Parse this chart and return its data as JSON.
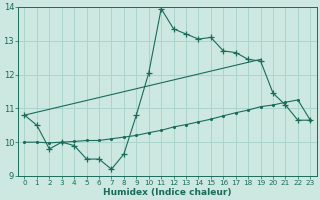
{
  "xlabel": "Humidex (Indice chaleur)",
  "bg_color": "#cce8e0",
  "line_color": "#1a6b5a",
  "grid_color": "#aad4cc",
  "xlim": [
    -0.5,
    23.5
  ],
  "ylim": [
    9.0,
    14.0
  ],
  "yticks": [
    9,
    10,
    11,
    12,
    13,
    14
  ],
  "xticks": [
    0,
    1,
    2,
    3,
    4,
    5,
    6,
    7,
    8,
    9,
    10,
    11,
    12,
    13,
    14,
    15,
    16,
    17,
    18,
    19,
    20,
    21,
    22,
    23
  ],
  "line1_x": [
    0,
    1,
    2,
    3,
    4,
    5,
    6,
    7,
    8,
    9,
    10,
    11,
    12,
    13,
    14,
    15,
    16,
    17,
    18,
    19,
    20,
    21,
    22,
    23
  ],
  "line1_y": [
    10.8,
    10.5,
    9.8,
    10.0,
    9.9,
    9.5,
    9.5,
    9.2,
    9.65,
    10.8,
    12.05,
    13.95,
    13.35,
    13.2,
    13.05,
    13.1,
    12.7,
    12.65,
    12.45,
    12.4,
    11.45,
    11.1,
    10.65,
    10.65
  ],
  "line2_x": [
    0,
    19
  ],
  "line2_y": [
    10.8,
    12.45
  ],
  "line3_x": [
    0,
    1,
    2,
    3,
    4,
    5,
    6,
    7,
    8,
    9,
    10,
    11,
    12,
    13,
    14,
    15,
    16,
    17,
    18,
    19,
    20,
    21,
    22,
    23
  ],
  "line3_y": [
    10.0,
    10.0,
    9.98,
    10.0,
    10.02,
    10.05,
    10.05,
    10.1,
    10.15,
    10.2,
    10.28,
    10.35,
    10.45,
    10.52,
    10.6,
    10.68,
    10.78,
    10.87,
    10.95,
    11.05,
    11.1,
    11.18,
    11.25,
    10.65
  ]
}
